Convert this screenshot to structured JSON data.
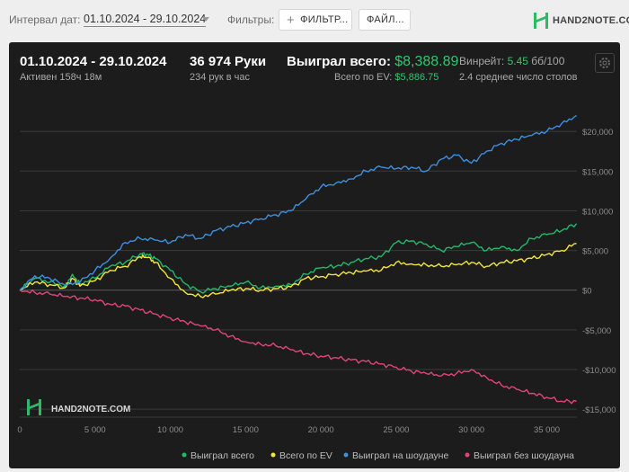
{
  "toolbar": {
    "date_interval_label": "Интервал дат:",
    "date_range": "01.10.2024 - 29.10.2024",
    "filters_label": "Фильтры:",
    "filter_button": "ФИЛЬТР...",
    "file_button": "ФАЙЛ...",
    "logo_text": "HAND2NOTE.COM"
  },
  "summary": {
    "period": "01.10.2024 - 29.10.2024",
    "active": "Активен 158ч 18м",
    "hands": "36 974 Руки",
    "hands_per_hour": "234 рук в час",
    "won_label": "Выиграл всего:",
    "won_value": "$8,388.89",
    "ev_label": "Всего по EV:",
    "ev_value": "$5,886.75",
    "winrate_label": "Винрейт:",
    "winrate_value": "5.45",
    "winrate_unit": "бб/100",
    "tables": "2.4 среднее число столов"
  },
  "watermark": "HAND2NOTE.COM",
  "colors": {
    "won": "#22b86a",
    "ev": "#f2e63a",
    "showdown": "#3d8fe0",
    "non_showdown": "#e0457a"
  },
  "chart_data": {
    "type": "line",
    "xlabel": "",
    "ylabel": "",
    "xlim": [
      0,
      37000
    ],
    "ylim": [
      -16000,
      25000
    ],
    "x_ticks": [
      0,
      5000,
      10000,
      15000,
      20000,
      25000,
      30000,
      35000
    ],
    "x_tick_labels": [
      "0",
      "5 000",
      "10 000",
      "15 000",
      "20 000",
      "25 000",
      "30 000",
      "35 000"
    ],
    "y_ticks": [
      -15000,
      -10000,
      -5000,
      0,
      5000,
      10000,
      15000,
      20000
    ],
    "y_tick_labels": [
      "-$15,000",
      "-$10,000",
      "-$5,000",
      "$0",
      "$5,000",
      "$10,000",
      "$15,000",
      "$20,000"
    ],
    "grid": true,
    "legend_position": "bottom",
    "series": [
      {
        "name": "Выиграл всего",
        "key": "won",
        "x": [
          0,
          1000,
          2000,
          3000,
          3500,
          4000,
          5000,
          6000,
          7000,
          8000,
          8500,
          9000,
          10000,
          11000,
          12000,
          13000,
          14000,
          15000,
          16000,
          17000,
          18000,
          19000,
          20000,
          21000,
          22000,
          23000,
          24000,
          25000,
          26000,
          27000,
          28000,
          29000,
          30000,
          31000,
          32000,
          33000,
          34000,
          35000,
          36000,
          36974
        ],
        "values": [
          0,
          1500,
          1000,
          500,
          2000,
          800,
          1500,
          3000,
          3500,
          4600,
          4500,
          4000,
          2500,
          800,
          -200,
          200,
          500,
          1000,
          300,
          500,
          700,
          2000,
          2800,
          3000,
          3500,
          4000,
          4200,
          6000,
          6200,
          5800,
          5000,
          5500,
          6000,
          5000,
          5500,
          5000,
          6500,
          7000,
          7500,
          8389
        ]
      },
      {
        "name": "Всего по EV",
        "key": "ev",
        "x": [
          0,
          1000,
          2000,
          3000,
          3500,
          4000,
          5000,
          6000,
          7000,
          8000,
          8500,
          9000,
          10000,
          11000,
          12000,
          13000,
          14000,
          15000,
          16000,
          17000,
          18000,
          19000,
          20000,
          21000,
          22000,
          23000,
          24000,
          25000,
          26000,
          27000,
          28000,
          29000,
          30000,
          31000,
          32000,
          33000,
          34000,
          35000,
          36000,
          36974
        ],
        "values": [
          0,
          1000,
          700,
          300,
          1500,
          500,
          1200,
          2500,
          3000,
          4200,
          4100,
          3500,
          1500,
          -300,
          -800,
          -500,
          0,
          200,
          0,
          200,
          400,
          1500,
          1700,
          2000,
          2200,
          2400,
          2500,
          3500,
          3300,
          3200,
          3000,
          3200,
          3500,
          3000,
          3500,
          3700,
          4000,
          4500,
          5000,
          5887
        ]
      },
      {
        "name": "Выиграл на шоудауне",
        "key": "showdown",
        "x": [
          0,
          1000,
          2000,
          3000,
          4000,
          5000,
          6000,
          7000,
          8000,
          9000,
          10000,
          11000,
          12000,
          13000,
          14000,
          15000,
          16000,
          17000,
          18000,
          19000,
          20000,
          21000,
          22000,
          23000,
          24000,
          25000,
          26000,
          27000,
          28000,
          29000,
          30000,
          31000,
          32000,
          33000,
          34000,
          35000,
          36000,
          36974
        ],
        "values": [
          0,
          1800,
          1500,
          600,
          1000,
          2500,
          4000,
          6000,
          6500,
          6300,
          6000,
          7000,
          6500,
          7500,
          8000,
          8500,
          9000,
          9500,
          10000,
          11500,
          13000,
          13500,
          14000,
          15000,
          15500,
          15300,
          15500,
          15000,
          16500,
          17000,
          16000,
          17500,
          18500,
          19000,
          19500,
          20000,
          21000,
          22000
        ]
      },
      {
        "name": "Выиграл без шоудауна",
        "key": "non_showdown",
        "x": [
          0,
          1000,
          2000,
          3000,
          4000,
          5000,
          6000,
          7000,
          8000,
          9000,
          10000,
          11000,
          12000,
          13000,
          14000,
          15000,
          16000,
          17000,
          18000,
          19000,
          20000,
          21000,
          22000,
          23000,
          24000,
          25000,
          26000,
          27000,
          28000,
          29000,
          30000,
          31000,
          32000,
          33000,
          34000,
          35000,
          36000,
          36974
        ],
        "values": [
          0,
          -300,
          -500,
          -800,
          -1000,
          -1200,
          -1800,
          -2000,
          -2500,
          -3000,
          -3500,
          -4000,
          -4500,
          -5000,
          -5800,
          -6500,
          -6800,
          -7000,
          -7500,
          -8000,
          -8300,
          -8500,
          -8800,
          -9000,
          -9300,
          -9700,
          -10200,
          -10500,
          -10800,
          -10500,
          -10000,
          -11000,
          -12000,
          -12500,
          -13000,
          -13500,
          -14000,
          -14000
        ]
      }
    ]
  }
}
